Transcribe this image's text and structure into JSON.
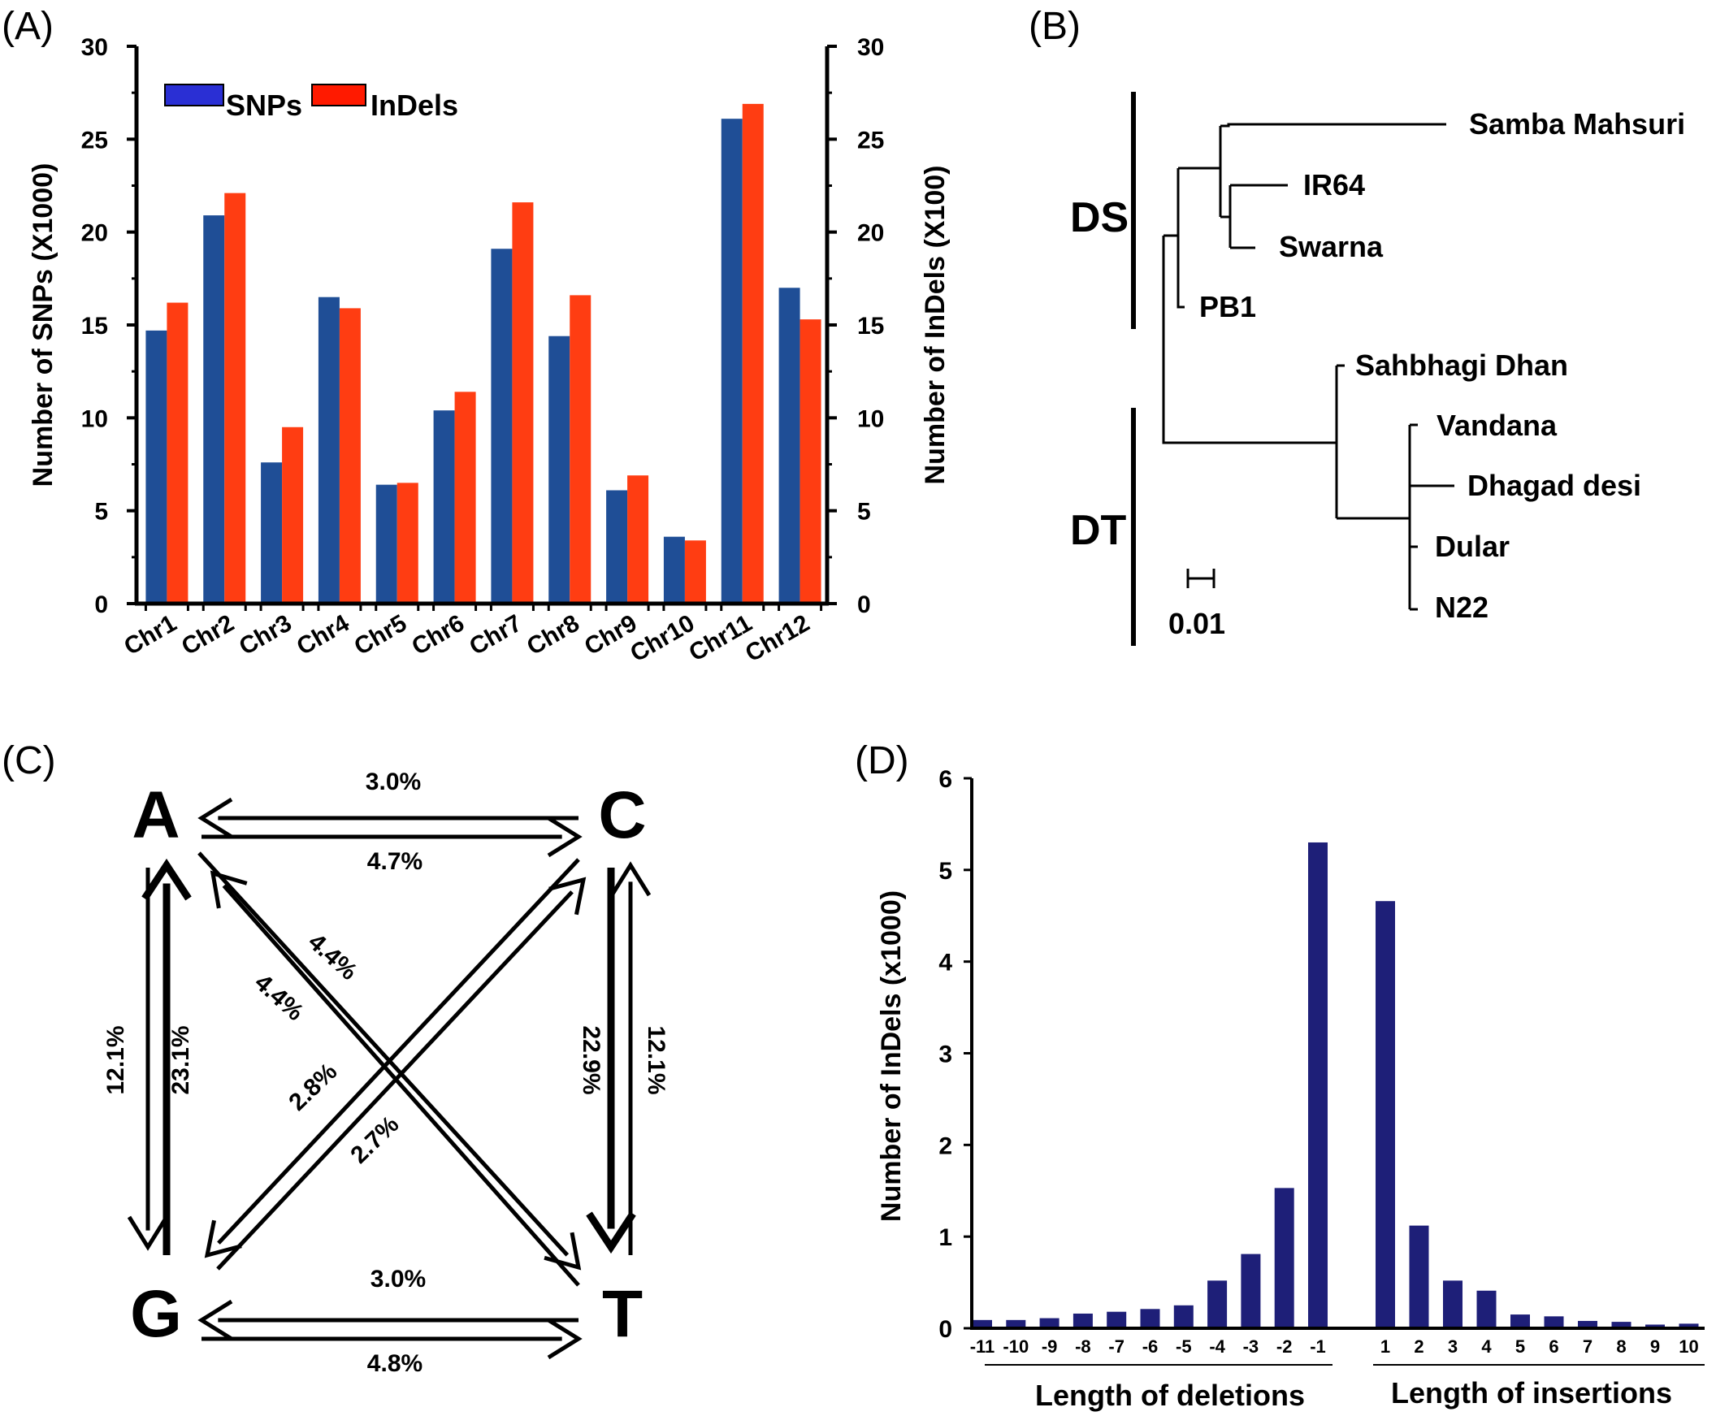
{
  "panels": {
    "a": "(A)",
    "b": "(B)",
    "c": "(C)",
    "d": "(D)"
  },
  "colors": {
    "snp": "#1f4e96",
    "indel": "#ff3d12",
    "legend_snp": "#2a2fd4",
    "legend_indel": "#ff1a00",
    "indel_length_bar": "#1e1f78"
  },
  "chart_data": [
    {
      "panel": "(A)",
      "type": "bar",
      "categories": [
        "Chr1",
        "Chr2",
        "Chr3",
        "Chr4",
        "Chr5",
        "Chr6",
        "Chr7",
        "Chr8",
        "Chr9",
        "Chr10",
        "Chr11",
        "Chr12"
      ],
      "series": [
        {
          "name": "SNPs",
          "axis": "left",
          "values": [
            14.7,
            20.9,
            7.6,
            16.5,
            6.4,
            10.4,
            19.1,
            14.4,
            6.1,
            3.6,
            26.1,
            17.0
          ]
        },
        {
          "name": "InDels",
          "axis": "right",
          "values": [
            16.2,
            22.1,
            9.5,
            15.9,
            6.5,
            11.4,
            21.6,
            16.6,
            6.9,
            3.4,
            26.9,
            15.3
          ]
        }
      ],
      "ylabel": "Number of SNPs (X1000)",
      "ylabel_right": "Number of InDels (X100)",
      "ylim": [
        0,
        30
      ],
      "yticks": [
        "0",
        "5",
        "10",
        "15",
        "20",
        "25",
        "30"
      ],
      "legend": "top-left",
      "grid": false
    },
    {
      "panel": "(D)",
      "type": "bar",
      "categories": [
        "-11",
        "-10",
        "-9",
        "-8",
        "-7",
        "-6",
        "-5",
        "-4",
        "-3",
        "-2",
        "-1",
        "1",
        "2",
        "3",
        "4",
        "5",
        "6",
        "7",
        "8",
        "9",
        "10"
      ],
      "values": [
        0.09,
        0.09,
        0.11,
        0.16,
        0.18,
        0.21,
        0.25,
        0.52,
        0.81,
        1.53,
        5.3,
        4.66,
        1.12,
        0.52,
        0.41,
        0.15,
        0.13,
        0.08,
        0.07,
        0.04,
        0.05
      ],
      "ylabel": "Number of InDels (x1000)",
      "ylim": [
        0,
        6
      ],
      "yticks": [
        "0",
        "1",
        "2",
        "3",
        "4",
        "5",
        "6"
      ],
      "group_labels": [
        "Length of deletions",
        "Length of insertions"
      ],
      "grid": false
    }
  ],
  "tree": {
    "groups": [
      "DS",
      "DT"
    ],
    "leaves": [
      "Samba Mahsuri",
      "IR64",
      "Swarna",
      "PB1",
      "Sahbhagi Dhan",
      "Vandana",
      "Dhagad desi",
      "Dular",
      "N22"
    ],
    "scale_label": "0.01"
  },
  "substitutions": {
    "nodes": [
      "A",
      "C",
      "G",
      "T"
    ],
    "rates": {
      "c_to_a": "3.0%",
      "a_to_c": "4.7%",
      "a_to_g": "12.1%",
      "g_to_a": "23.1%",
      "c_to_t": "22.9%",
      "t_to_c": "12.1%",
      "a_to_t": "4.4%",
      "t_to_a": "4.4%",
      "c_to_g": "2.8%",
      "g_to_c": "2.7%",
      "t_to_g": "3.0%",
      "g_to_t": "4.8%"
    }
  }
}
